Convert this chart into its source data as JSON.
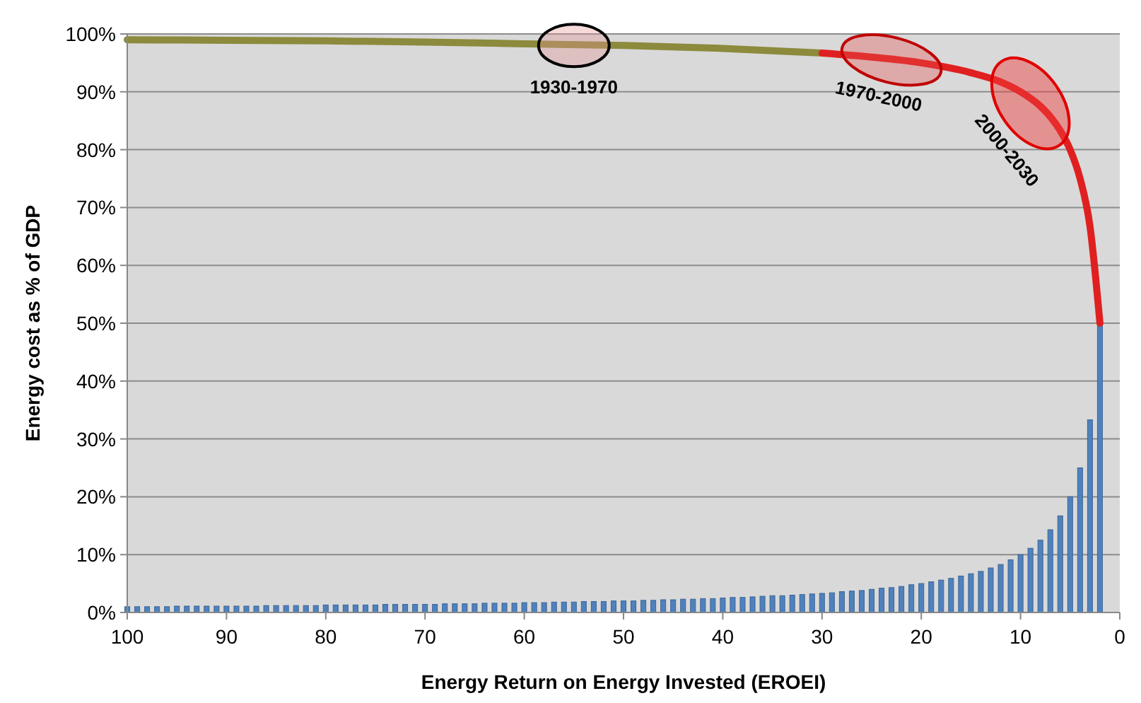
{
  "chart_data": {
    "type": "bar",
    "xlabel": "Energy Return on Energy Invested (EROEI)",
    "ylabel": "Energy cost as % of GDP",
    "xlim": [
      100,
      0
    ],
    "xticks": [
      100,
      90,
      80,
      70,
      60,
      50,
      40,
      30,
      20,
      10,
      0
    ],
    "ylim": [
      0,
      100
    ],
    "yticks": [
      {
        "value": 0,
        "label": "0%"
      },
      {
        "value": 10,
        "label": "10%"
      },
      {
        "value": 20,
        "label": "20%"
      },
      {
        "value": 30,
        "label": "30%"
      },
      {
        "value": 40,
        "label": "40%"
      },
      {
        "value": 50,
        "label": "50%"
      },
      {
        "value": 60,
        "label": "60%"
      },
      {
        "value": 70,
        "label": "70%"
      },
      {
        "value": 80,
        "label": "80%"
      },
      {
        "value": 90,
        "label": "90%"
      },
      {
        "value": 100,
        "label": "100%"
      }
    ],
    "grid": "y",
    "series": [
      {
        "color": "#4f81bd",
        "x": [
          100,
          99,
          98,
          97,
          96,
          95,
          94,
          93,
          92,
          91,
          90,
          89,
          88,
          87,
          86,
          85,
          84,
          83,
          82,
          81,
          80,
          79,
          78,
          77,
          76,
          75,
          74,
          73,
          72,
          71,
          70,
          69,
          68,
          67,
          66,
          65,
          64,
          63,
          62,
          61,
          60,
          59,
          58,
          57,
          56,
          55,
          54,
          53,
          52,
          51,
          50,
          49,
          48,
          47,
          46,
          45,
          44,
          43,
          42,
          41,
          40,
          39,
          38,
          37,
          36,
          35,
          34,
          33,
          32,
          31,
          30,
          29,
          28,
          27,
          26,
          25,
          24,
          23,
          22,
          21,
          20,
          19,
          18,
          17,
          16,
          15,
          14,
          13,
          12,
          11,
          10,
          9,
          8,
          7,
          6,
          5,
          4,
          3,
          2
        ],
        "values": [
          1.0,
          1.0,
          1.0,
          1.0,
          1.0,
          1.1,
          1.1,
          1.1,
          1.1,
          1.1,
          1.1,
          1.1,
          1.1,
          1.1,
          1.2,
          1.2,
          1.2,
          1.2,
          1.2,
          1.2,
          1.3,
          1.3,
          1.3,
          1.3,
          1.3,
          1.3,
          1.4,
          1.4,
          1.4,
          1.4,
          1.4,
          1.4,
          1.5,
          1.5,
          1.5,
          1.5,
          1.6,
          1.6,
          1.6,
          1.6,
          1.7,
          1.7,
          1.7,
          1.8,
          1.8,
          1.8,
          1.9,
          1.9,
          1.9,
          2.0,
          2.0,
          2.0,
          2.1,
          2.1,
          2.2,
          2.2,
          2.3,
          2.3,
          2.4,
          2.4,
          2.5,
          2.6,
          2.6,
          2.7,
          2.8,
          2.9,
          2.9,
          3.0,
          3.1,
          3.2,
          3.3,
          3.4,
          3.6,
          3.7,
          3.8,
          4.0,
          4.2,
          4.3,
          4.5,
          4.8,
          5.0,
          5.3,
          5.6,
          5.9,
          6.3,
          6.7,
          7.1,
          7.7,
          8.3,
          9.1,
          10,
          11.1,
          12.5,
          14.3,
          16.7,
          20,
          25,
          33.3,
          50
        ]
      },
      {
        "type": "line",
        "color": "#8c8a3c",
        "x": [
          100,
          90,
          80,
          70,
          60,
          50,
          40,
          30
        ],
        "values": [
          99,
          98.9,
          98.8,
          98.6,
          98.3,
          98,
          97.5,
          96.7
        ]
      },
      {
        "type": "line",
        "color": "#e02020",
        "x": [
          30,
          25,
          20,
          15,
          12,
          10,
          8,
          7,
          6,
          5,
          4,
          3,
          2
        ],
        "values": [
          96.7,
          96,
          95,
          93.3,
          91.7,
          90,
          87.5,
          85.7,
          83.3,
          80,
          75,
          66.7,
          50
        ]
      }
    ],
    "annotations": [
      {
        "text": "1930-1970",
        "x": 55,
        "y": 98
      },
      {
        "text": "1970-2000",
        "x": 23,
        "y": 95.5
      },
      {
        "text": "2000-2030",
        "x": 9,
        "y": 88
      }
    ]
  }
}
